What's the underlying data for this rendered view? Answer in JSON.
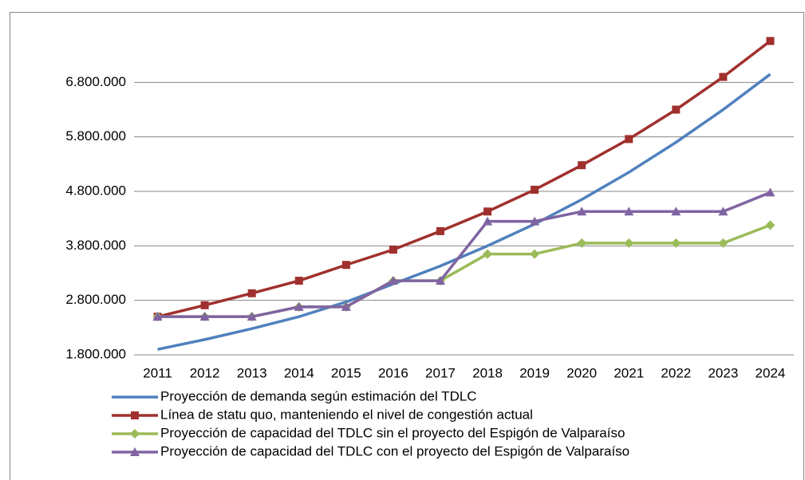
{
  "chart_data": {
    "type": "line",
    "categories": [
      "2011",
      "2012",
      "2013",
      "2014",
      "2015",
      "2016",
      "2017",
      "2018",
      "2019",
      "2020",
      "2021",
      "2022",
      "2023",
      "2024"
    ],
    "series": [
      {
        "name": "Proyección de demanda según estimación del TDLC",
        "color": "#4f81bd",
        "marker": "none",
        "values": [
          1900000,
          2080000,
          2280000,
          2500000,
          2770000,
          3100000,
          3430000,
          3800000,
          4200000,
          4650000,
          5150000,
          5700000,
          6300000,
          6950000
        ]
      },
      {
        "name": "Línea de statu quo, manteniendo el nivel de congestión actual",
        "color": "#a0302d",
        "marker": "square",
        "values": [
          2500000,
          2710000,
          2930000,
          3160000,
          3450000,
          3730000,
          4070000,
          4430000,
          4830000,
          5280000,
          5760000,
          6300000,
          6900000,
          7560000
        ]
      },
      {
        "name": "Proyección de capacidad del TDLC sin el proyecto del Espigón de Valparaíso",
        "color": "#9bbb59",
        "marker": "diamond",
        "values": [
          2500000,
          2500000,
          2500000,
          2680000,
          2680000,
          3160000,
          3160000,
          3650000,
          3650000,
          3850000,
          3850000,
          3850000,
          3850000,
          4180000
        ]
      },
      {
        "name": "Proyección de capacidad del TDLC con el proyecto del Espigón de Valparaíso",
        "color": "#8064a2",
        "marker": "triangle",
        "values": [
          2500000,
          2500000,
          2500000,
          2680000,
          2680000,
          3160000,
          3160000,
          4250000,
          4250000,
          4430000,
          4430000,
          4430000,
          4430000,
          4780000
        ]
      }
    ],
    "ylim": [
      1800000,
      7800000
    ],
    "yticks": [
      {
        "value": 1800000,
        "label": "1.800.000"
      },
      {
        "value": 2800000,
        "label": "2.800.000"
      },
      {
        "value": 3800000,
        "label": "3.800.000"
      },
      {
        "value": 4800000,
        "label": "4.800.000"
      },
      {
        "value": 5800000,
        "label": "5.800.000"
      },
      {
        "value": 6800000,
        "label": "6.800.000"
      }
    ],
    "grid": true,
    "legend": "bottom"
  }
}
